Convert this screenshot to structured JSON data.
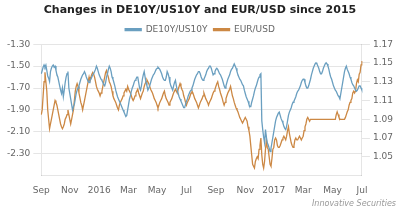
{
  "chart_data": {
    "type": "line",
    "title": "Changes in DE10Y/US10Y and EUR/USD since 2015",
    "annotations": [
      "Innovative Securities"
    ],
    "grid": true,
    "legend": "top",
    "categories": [
      "Sep",
      null,
      null,
      null,
      null,
      null,
      null,
      null,
      null,
      null,
      null,
      null,
      null,
      null,
      null,
      null,
      null,
      null,
      null,
      null,
      null,
      null,
      null,
      null,
      null,
      null,
      null,
      null,
      null,
      null,
      null,
      "Nov",
      null,
      null,
      null,
      null,
      null,
      null,
      null,
      null,
      null,
      null,
      null,
      null,
      null,
      null,
      null,
      null,
      null,
      null,
      null,
      null,
      null,
      null,
      null,
      null,
      null,
      null,
      null,
      null,
      null,
      null,
      null,
      "2016",
      null,
      null,
      null,
      null,
      null,
      null,
      null,
      null,
      null,
      null,
      null,
      null,
      null,
      null,
      null,
      null,
      null,
      null,
      null,
      null,
      null,
      null,
      null,
      null,
      null,
      null,
      null,
      null,
      null,
      null,
      null,
      "Mar",
      null,
      null,
      null,
      null,
      null,
      null,
      null,
      null,
      null,
      null,
      null,
      null,
      null,
      null,
      null,
      null,
      null,
      null,
      null,
      null,
      null,
      null,
      null,
      null,
      null,
      null,
      null,
      null,
      null,
      null,
      "May",
      null,
      null,
      null,
      null,
      null,
      null,
      null,
      null,
      null,
      null,
      null,
      null,
      null,
      null,
      null,
      null,
      null,
      null,
      null,
      null,
      null,
      null,
      null,
      null,
      null,
      null,
      null,
      null,
      null,
      null,
      null,
      "Jul",
      null,
      null,
      null,
      null,
      null,
      null,
      null,
      null,
      null,
      null,
      null,
      null,
      null,
      null,
      null,
      null,
      null,
      null,
      null,
      null,
      null,
      null,
      null,
      null,
      null,
      null,
      null,
      null,
      null,
      null,
      null,
      "Sep",
      null,
      null,
      null,
      null,
      null,
      null,
      null,
      null,
      null,
      null,
      null,
      null,
      null,
      null,
      null,
      null,
      null,
      null,
      null,
      null,
      null,
      null,
      null,
      null,
      null,
      null,
      null,
      null,
      null,
      null,
      null,
      "Nov",
      null,
      null,
      null,
      null,
      null,
      null,
      null,
      null,
      null,
      null,
      null,
      null,
      null,
      null,
      null,
      null,
      null,
      null,
      null,
      null,
      null,
      null,
      null,
      null,
      null,
      null,
      null,
      null,
      null,
      null,
      "2017",
      null,
      null,
      null,
      null,
      null,
      null,
      null,
      null,
      null,
      null,
      null,
      null,
      null,
      null,
      null,
      null,
      null,
      null,
      null,
      null,
      null,
      null,
      null,
      null,
      null,
      null,
      null,
      null,
      null,
      null,
      null,
      "Mar",
      null,
      null,
      null,
      null,
      null,
      null,
      null,
      null,
      null,
      null,
      null,
      null,
      null,
      null,
      null,
      null,
      null,
      null,
      null,
      null,
      null,
      null,
      null,
      null,
      null,
      null,
      null,
      null,
      null,
      null,
      null,
      "May",
      null,
      null,
      null,
      null,
      null,
      null,
      null,
      null,
      null,
      null,
      null,
      null,
      null,
      null,
      null,
      null,
      null,
      null,
      null,
      null,
      null,
      null,
      null,
      null,
      null,
      null,
      null,
      null,
      null,
      null,
      null,
      "Jul"
    ],
    "ylim": [
      -2.5,
      -1.3
    ],
    "yticks": [
      {
        "value": -2.3,
        "label": "-2.30"
      },
      {
        "value": -2.1,
        "label": "-2.10"
      },
      {
        "value": -1.9,
        "label": "-1.90"
      },
      {
        "value": -1.7,
        "label": "-1.70"
      },
      {
        "value": -1.5,
        "label": "-1.50"
      },
      {
        "value": -1.3,
        "label": "-1.30"
      }
    ],
    "y2lim": [
      1.03,
      1.17
    ],
    "y2ticks": [
      1.05,
      1.07,
      1.09,
      1.11,
      1.13,
      1.15,
      1.17
    ],
    "series": [
      {
        "name": "DE10Y/US10Y",
        "color": "#6a9fc0",
        "values": [
          -1.57,
          -1.54,
          -1.51,
          -1.49,
          -1.51,
          -1.49,
          -1.54,
          -1.59,
          -1.61,
          -1.64,
          -1.55,
          -1.52,
          -1.5,
          -1.49,
          -1.51,
          -1.5,
          -1.54,
          -1.58,
          -1.6,
          -1.64,
          -1.68,
          -1.72,
          -1.75,
          -1.7,
          -1.78,
          -1.72,
          -1.65,
          -1.6,
          -1.57,
          -1.55,
          -1.7,
          -1.75,
          -1.8,
          -1.85,
          -1.9,
          -1.87,
          -1.85,
          -1.8,
          -1.75,
          -1.72,
          -1.7,
          -1.68,
          -1.65,
          -1.62,
          -1.6,
          -1.58,
          -1.57,
          -1.55,
          -1.57,
          -1.6,
          -1.62,
          -1.64,
          -1.65,
          -1.63,
          -1.62,
          -1.6,
          -1.58,
          -1.57,
          -1.55,
          -1.53,
          -1.5,
          -1.52,
          -1.55,
          -1.58,
          -1.6,
          -1.62,
          -1.63,
          -1.65,
          -1.67,
          -1.68,
          -1.65,
          -1.6,
          -1.57,
          -1.53,
          -1.5,
          -1.52,
          -1.55,
          -1.6,
          -1.62,
          -1.65,
          -1.68,
          -1.72,
          -1.75,
          -1.78,
          -1.8,
          -1.82,
          -1.84,
          -1.86,
          -1.88,
          -1.9,
          -1.92,
          -1.94,
          -1.96,
          -1.95,
          -1.9,
          -1.85,
          -1.8,
          -1.77,
          -1.73,
          -1.7,
          -1.68,
          -1.65,
          -1.63,
          -1.62,
          -1.6,
          -1.6,
          -1.65,
          -1.7,
          -1.72,
          -1.68,
          -1.62,
          -1.58,
          -1.55,
          -1.6,
          -1.65,
          -1.68,
          -1.72,
          -1.7,
          -1.68,
          -1.65,
          -1.62,
          -1.6,
          -1.58,
          -1.57,
          -1.55,
          -1.53,
          -1.52,
          -1.51,
          -1.52,
          -1.53,
          -1.55,
          -1.57,
          -1.6,
          -1.62,
          -1.63,
          -1.63,
          -1.6,
          -1.55,
          -1.57,
          -1.6,
          -1.65,
          -1.68,
          -1.7,
          -1.72,
          -1.68,
          -1.65,
          -1.63,
          -1.68,
          -1.72,
          -1.75,
          -1.78,
          -1.8,
          -1.82,
          -1.84,
          -1.86,
          -1.88,
          -1.88,
          -1.85,
          -1.82,
          -1.8,
          -1.77,
          -1.75,
          -1.73,
          -1.72,
          -1.7,
          -1.68,
          -1.65,
          -1.62,
          -1.6,
          -1.58,
          -1.57,
          -1.55,
          -1.55,
          -1.57,
          -1.6,
          -1.62,
          -1.63,
          -1.62,
          -1.6,
          -1.58,
          -1.55,
          -1.53,
          -1.52,
          -1.5,
          -1.5,
          -1.52,
          -1.55,
          -1.58,
          -1.57,
          -1.55,
          -1.53,
          -1.52,
          -1.53,
          -1.55,
          -1.57,
          -1.58,
          -1.6,
          -1.62,
          -1.65,
          -1.68,
          -1.7,
          -1.68,
          -1.65,
          -1.62,
          -1.6,
          -1.58,
          -1.55,
          -1.53,
          -1.52,
          -1.5,
          -1.48,
          -1.5,
          -1.52,
          -1.55,
          -1.58,
          -1.6,
          -1.62,
          -1.63,
          -1.65,
          -1.67,
          -1.68,
          -1.72,
          -1.75,
          -1.78,
          -1.8,
          -1.82,
          -1.85,
          -1.87,
          -1.87,
          -1.83,
          -1.8,
          -1.77,
          -1.73,
          -1.7,
          -1.68,
          -1.65,
          -1.62,
          -1.6,
          -1.58,
          -1.57,
          -2.0,
          -2.08,
          -2.15,
          -2.2,
          -2.08,
          -2.15,
          -2.2,
          -2.22,
          -2.25,
          -2.28,
          -2.25,
          -2.2,
          -2.15,
          -2.1,
          -2.05,
          -2.0,
          -1.97,
          -1.95,
          -1.93,
          -1.92,
          -1.95,
          -1.98,
          -2.0,
          -2.02,
          -2.05,
          -2.07,
          -2.08,
          -2.05,
          -2.0,
          -1.95,
          -1.92,
          -1.9,
          -1.88,
          -1.85,
          -1.83,
          -1.82,
          -1.8,
          -1.78,
          -1.75,
          -1.73,
          -1.72,
          -1.7,
          -1.68,
          -1.65,
          -1.63,
          -1.62,
          -1.62,
          -1.65,
          -1.68,
          -1.7,
          -1.7,
          -1.68,
          -1.65,
          -1.62,
          -1.58,
          -1.55,
          -1.52,
          -1.5,
          -1.48,
          -1.47,
          -1.48,
          -1.5,
          -1.52,
          -1.55,
          -1.57,
          -1.57,
          -1.55,
          -1.52,
          -1.5,
          -1.48,
          -1.47,
          -1.48,
          -1.5,
          -1.53,
          -1.57,
          -1.6,
          -1.62,
          -1.65,
          -1.68,
          -1.7,
          -1.72,
          -1.73,
          -1.75,
          -1.77,
          -1.78,
          -1.8,
          -1.75,
          -1.7,
          -1.65,
          -1.6,
          -1.55,
          -1.52,
          -1.5,
          -1.53,
          -1.55,
          -1.57,
          -1.6,
          -1.62,
          -1.65,
          -1.67,
          -1.68,
          -1.7,
          -1.72,
          -1.73,
          -1.72,
          -1.7,
          -1.68,
          -1.68,
          -1.7,
          -1.72
        ]
      },
      {
        "name": "EUR/USD",
        "color": "#cc8844",
        "axis": "y2",
        "values": [
          1.095,
          1.1,
          1.115,
          1.13,
          1.14,
          1.13,
          1.12,
          1.1,
          1.09,
          1.08,
          1.085,
          1.09,
          1.095,
          1.1,
          1.105,
          1.11,
          1.108,
          1.105,
          1.1,
          1.095,
          1.09,
          1.085,
          1.082,
          1.08,
          1.082,
          1.085,
          1.09,
          1.092,
          1.095,
          1.1,
          1.095,
          1.09,
          1.085,
          1.09,
          1.095,
          1.1,
          1.11,
          1.12,
          1.125,
          1.128,
          1.125,
          1.118,
          1.113,
          1.108,
          1.105,
          1.1,
          1.105,
          1.11,
          1.115,
          1.12,
          1.125,
          1.13,
          1.135,
          1.13,
          1.135,
          1.138,
          1.14,
          1.138,
          1.135,
          1.13,
          1.125,
          1.122,
          1.12,
          1.118,
          1.115,
          1.118,
          1.12,
          1.125,
          1.13,
          1.135,
          1.14,
          1.142,
          1.138,
          1.135,
          1.13,
          1.128,
          1.125,
          1.12,
          1.115,
          1.112,
          1.11,
          1.108,
          1.105,
          1.102,
          1.1,
          1.105,
          1.108,
          1.11,
          1.112,
          1.115,
          1.118,
          1.12,
          1.122,
          1.12,
          1.125,
          1.122,
          1.12,
          1.118,
          1.115,
          1.112,
          1.11,
          1.112,
          1.115,
          1.118,
          1.12,
          1.122,
          1.118,
          1.115,
          1.112,
          1.115,
          1.118,
          1.12,
          1.125,
          1.128,
          1.13,
          1.132,
          1.13,
          1.128,
          1.125,
          1.122,
          1.12,
          1.118,
          1.115,
          1.112,
          1.11,
          1.108,
          1.105,
          1.102,
          1.105,
          1.108,
          1.11,
          1.112,
          1.115,
          1.118,
          1.12,
          1.115,
          1.112,
          1.11,
          1.108,
          1.105,
          1.108,
          1.11,
          1.112,
          1.115,
          1.118,
          1.12,
          1.122,
          1.12,
          1.118,
          1.122,
          1.125,
          1.128,
          1.125,
          1.122,
          1.12,
          1.115,
          1.112,
          1.108,
          1.105,
          1.108,
          1.11,
          1.112,
          1.115,
          1.118,
          1.12,
          1.118,
          1.115,
          1.112,
          1.11,
          1.108,
          1.105,
          1.102,
          1.105,
          1.108,
          1.11,
          1.112,
          1.115,
          1.118,
          1.115,
          1.112,
          1.11,
          1.108,
          1.105,
          1.108,
          1.11,
          1.112,
          1.115,
          1.118,
          1.12,
          1.122,
          1.125,
          1.128,
          1.13,
          1.125,
          1.122,
          1.118,
          1.115,
          1.112,
          1.108,
          1.105,
          1.108,
          1.112,
          1.115,
          1.118,
          1.12,
          1.122,
          1.125,
          1.12,
          1.115,
          1.112,
          1.108,
          1.105,
          1.102,
          1.1,
          1.098,
          1.095,
          1.092,
          1.09,
          1.088,
          1.086,
          1.088,
          1.09,
          1.092,
          1.09,
          1.088,
          1.082,
          1.078,
          1.072,
          1.062,
          1.052,
          1.042,
          1.04,
          1.038,
          1.045,
          1.048,
          1.05,
          1.048,
          1.058,
          1.062,
          1.07,
          1.052,
          1.042,
          1.038,
          1.045,
          1.058,
          1.068,
          1.06,
          1.058,
          1.05,
          1.042,
          1.04,
          1.048,
          1.058,
          1.06,
          1.068,
          1.07,
          1.068,
          1.062,
          1.06,
          1.06,
          1.062,
          1.065,
          1.068,
          1.07,
          1.072,
          1.07,
          1.068,
          1.072,
          1.078,
          1.082,
          1.075,
          1.07,
          1.065,
          1.062,
          1.06,
          1.062,
          1.068,
          1.07,
          1.068,
          1.068,
          1.07,
          1.072,
          1.07,
          1.068,
          1.07,
          1.072,
          1.078,
          1.082,
          1.085,
          1.09,
          1.092,
          1.09,
          1.088,
          1.09,
          1.09,
          1.09,
          1.09,
          1.09,
          1.09,
          1.09,
          1.09,
          1.09,
          1.09,
          1.09,
          1.09,
          1.09,
          1.09,
          1.09,
          1.09,
          1.09,
          1.09,
          1.09,
          1.09,
          1.09,
          1.09,
          1.09,
          1.09,
          1.09,
          1.09,
          1.09,
          1.09,
          1.095,
          1.098,
          1.095,
          1.092,
          1.09,
          1.09,
          1.09,
          1.09,
          1.09,
          1.09,
          1.092,
          1.095,
          1.098,
          1.1,
          1.105,
          1.108,
          1.11,
          1.112,
          1.118,
          1.12,
          1.118,
          1.12,
          1.128,
          1.132,
          1.13,
          1.138,
          1.14,
          1.148,
          1.152
        ]
      }
    ]
  }
}
